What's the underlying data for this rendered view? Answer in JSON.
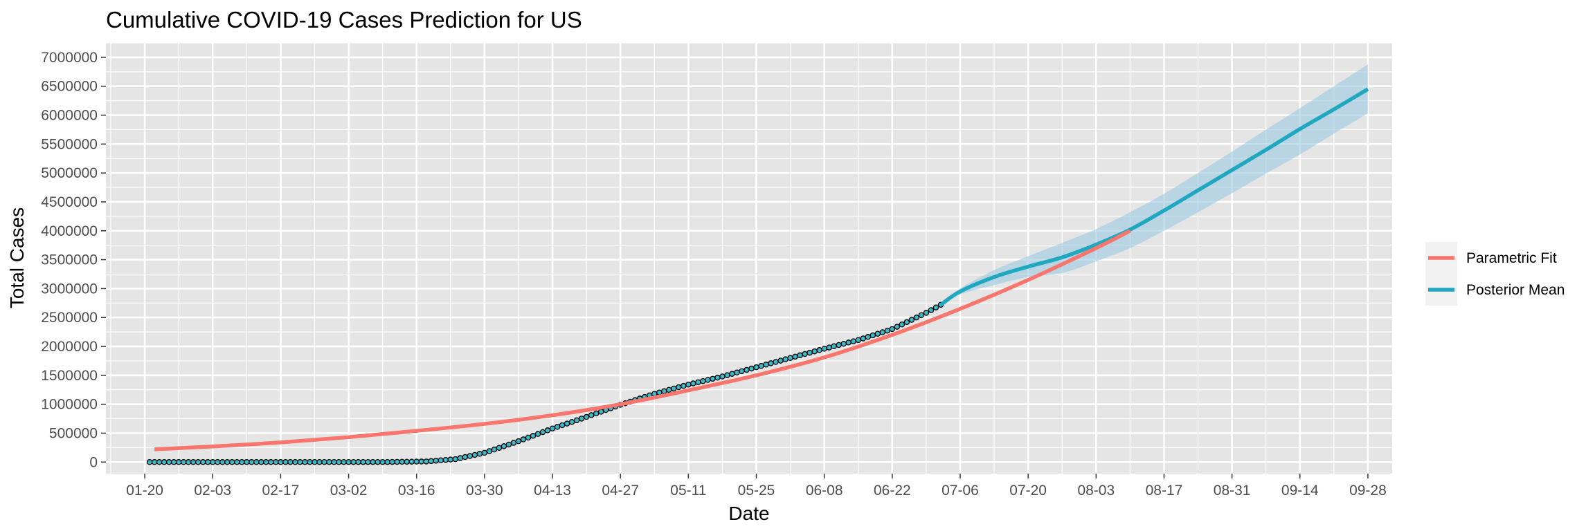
{
  "chart_data": {
    "type": "line",
    "title": "Cumulative COVID-19 Cases Prediction for US",
    "xlabel": "Date",
    "ylabel": "Total Cases",
    "ylim": [
      -200000,
      7250000
    ],
    "xlim": [
      "2020-01-12",
      "2020-10-03"
    ],
    "x_ticks": [
      "01-20",
      "02-03",
      "02-17",
      "03-02",
      "03-16",
      "03-30",
      "04-13",
      "04-27",
      "05-11",
      "05-25",
      "06-08",
      "06-22",
      "07-06",
      "07-20",
      "08-03",
      "08-17",
      "08-31",
      "09-14",
      "09-28"
    ],
    "y_ticks": [
      0,
      500000,
      1000000,
      1500000,
      2000000,
      2500000,
      3000000,
      3500000,
      4000000,
      4500000,
      5000000,
      5500000,
      6000000,
      6500000,
      7000000
    ],
    "y_tick_labels": [
      "0",
      "500000",
      "1000000",
      "1500000",
      "2000000",
      "2500000",
      "3000000",
      "3500000",
      "4000000",
      "4500000",
      "5000000",
      "5500000",
      "6000000",
      "6500000",
      "7000000"
    ],
    "grid": true,
    "legend_position": "right",
    "colors": {
      "parametric_fit": "#f8766d",
      "posterior_mean": "#1fa8bf",
      "ribbon": "#9ecae1",
      "points_fill": "#3fb9c7",
      "points_edge": "#000000",
      "panel": "#e5e5e5",
      "grid": "#ffffff"
    },
    "legend": [
      {
        "name": "Parametric Fit",
        "color": "#f8766d"
      },
      {
        "name": "Posterior Mean",
        "color": "#1fa8bf"
      }
    ],
    "series": [
      {
        "name": "Parametric Fit",
        "kind": "line",
        "color": "#f8766d",
        "x": [
          "2020-01-22",
          "2020-02-03",
          "2020-02-17",
          "2020-03-02",
          "2020-03-16",
          "2020-03-30",
          "2020-04-13",
          "2020-04-27",
          "2020-05-11",
          "2020-05-25",
          "2020-06-08",
          "2020-06-22",
          "2020-07-06",
          "2020-07-20",
          "2020-08-03",
          "2020-08-10"
        ],
        "y": [
          220000,
          270000,
          340000,
          430000,
          540000,
          660000,
          810000,
          1000000,
          1240000,
          1500000,
          1810000,
          2200000,
          2650000,
          3150000,
          3700000,
          4000000
        ]
      },
      {
        "name": "Posterior Mean",
        "kind": "line",
        "color": "#1fa8bf",
        "x": [
          "2020-07-02",
          "2020-07-06",
          "2020-07-13",
          "2020-07-20",
          "2020-07-27",
          "2020-08-03",
          "2020-08-10",
          "2020-08-17",
          "2020-08-24",
          "2020-08-31",
          "2020-09-07",
          "2020-09-14",
          "2020-09-21",
          "2020-09-28"
        ],
        "y": [
          2720000,
          2950000,
          3200000,
          3380000,
          3540000,
          3760000,
          4020000,
          4350000,
          4700000,
          5050000,
          5400000,
          5760000,
          6100000,
          6450000
        ]
      },
      {
        "name": "Posterior Band",
        "kind": "ribbon",
        "color": "#9ecae1",
        "x": [
          "2020-07-02",
          "2020-07-06",
          "2020-07-13",
          "2020-07-20",
          "2020-07-27",
          "2020-08-03",
          "2020-08-10",
          "2020-08-17",
          "2020-08-24",
          "2020-08-31",
          "2020-09-07",
          "2020-09-14",
          "2020-09-21",
          "2020-09-28"
        ],
        "y_low": [
          2720000,
          2900000,
          3060000,
          3200000,
          3270000,
          3470000,
          3700000,
          4000000,
          4320000,
          4650000,
          4990000,
          5320000,
          5680000,
          6030000
        ],
        "y_high": [
          2720000,
          3000000,
          3320000,
          3560000,
          3790000,
          4030000,
          4320000,
          4640000,
          5000000,
          5370000,
          5750000,
          6120000,
          6500000,
          6880000
        ]
      },
      {
        "name": "Observed",
        "kind": "points",
        "start": "2020-01-21",
        "end": "2020-07-02",
        "anchors": {
          "x": [
            "2020-01-21",
            "2020-02-20",
            "2020-03-10",
            "2020-03-18",
            "2020-03-24",
            "2020-03-30",
            "2020-04-06",
            "2020-04-13",
            "2020-04-20",
            "2020-04-27",
            "2020-05-04",
            "2020-05-11",
            "2020-05-18",
            "2020-05-25",
            "2020-06-01",
            "2020-06-08",
            "2020-06-15",
            "2020-06-22",
            "2020-06-29",
            "2020-07-02"
          ],
          "y": [
            0,
            0,
            1000,
            10000,
            50000,
            160000,
            360000,
            580000,
            780000,
            990000,
            1180000,
            1340000,
            1480000,
            1640000,
            1800000,
            1960000,
            2110000,
            2300000,
            2580000,
            2720000
          ]
        }
      }
    ]
  }
}
